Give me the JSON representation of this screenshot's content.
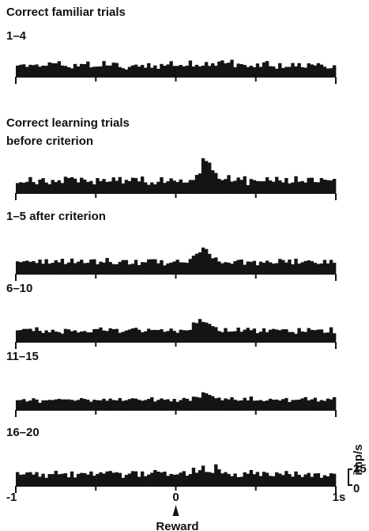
{
  "chart_data": {
    "type": "bar",
    "subtype": "peri-event time histogram (stacked panels, shared x axis)",
    "x_unit": "s",
    "xlim": [
      -1,
      1
    ],
    "x_ticks": [
      -1,
      -0.5,
      0,
      0.5,
      1
    ],
    "x_tick_labels": [
      "-1",
      "",
      "0",
      "",
      "1s"
    ],
    "event_marker": {
      "x": 0,
      "label": "Reward"
    },
    "bin_width": 0.02,
    "scale_bar": {
      "top_label": "25",
      "bottom_label": "0",
      "unit_label": "imp/s",
      "ylim": [
        0,
        25
      ]
    },
    "panels": [
      {
        "title_lines": [
          "Correct familiar trials",
          "1–4"
        ],
        "values": [
          6.4,
          6.9,
          7.2,
          5.6,
          6.9,
          6.7,
          7.1,
          5.7,
          6.4,
          6.3,
          8.4,
          7.9,
          7.8,
          9.1,
          6.4,
          6.2,
          5.4,
          4.7,
          7.4,
          5.9,
          7.4,
          7.3,
          8.9,
          5.3,
          5.7,
          5.8,
          5.9,
          9.2,
          6.5,
          6.4,
          8.2,
          8.0,
          5.5,
          4.8,
          4.0,
          5.6,
          6.5,
          7.0,
          5.8,
          6.8,
          5.1,
          7.9,
          5.1,
          6.5,
          4.4,
          7.4,
          6.3,
          7.1,
          9.1,
          6.2,
          6.2,
          6.8,
          5.9,
          6.4,
          9.5,
          5.8,
          6.9,
          5.9,
          6.4,
          8.6,
          6.2,
          7.8,
          6.3,
          8.9,
          9.6,
          7.8,
          8.2,
          10.0,
          5.4,
          7.6,
          7.3,
          6.8,
          5.5,
          6.3,
          5.4,
          7.7,
          5.6,
          8.4,
          9.2,
          6.0,
          5.9,
          4.5,
          7.9,
          4.9,
          5.6,
          5.6,
          8.0,
          5.9,
          7.9,
          5.4,
          5.1,
          7.8,
          7.1,
          6.5,
          7.9,
          7.0,
          5.7,
          4.6,
          4.8,
          6.6
        ]
      },
      {
        "title_lines": [
          "Correct learning trials",
          "before criterion"
        ],
        "values": [
          5.7,
          6.2,
          5.9,
          6.5,
          9.4,
          6.3,
          5.0,
          7.8,
          8.7,
          6.0,
          5.0,
          7.6,
          6.3,
          7.4,
          5.7,
          9.6,
          8.8,
          9.3,
          8.4,
          6.1,
          9.0,
          7.9,
          6.4,
          7.0,
          4.9,
          8.8,
          6.9,
          8.2,
          6.4,
          6.7,
          9.2,
          7.1,
          9.4,
          5.5,
          7.7,
          6.9,
          9.0,
          8.8,
          6.7,
          9.7,
          6.1,
          4.6,
          6.1,
          4.9,
          6.5,
          9.3,
          5.8,
          6.8,
          8.6,
          7.2,
          6.3,
          7.9,
          6.0,
          6.0,
          7.6,
          7.6,
          10.7,
          11.6,
          21.0,
          19.3,
          18.3,
          13.6,
          11.9,
          8.3,
          7.5,
          8.2,
          10.6,
          6.6,
          7.1,
          9.1,
          7.7,
          9.9,
          4.4,
          8.2,
          7.5,
          6.9,
          6.8,
          6.8,
          9.3,
          7.3,
          6.5,
          9.5,
          7.3,
          6.1,
          8.8,
          5.5,
          6.1,
          9.9,
          6.5,
          6.9,
          6.0,
          8.9,
          9.0,
          6.3,
          6.2,
          8.8,
          7.8,
          7.5,
          7.3,
          8.3
        ]
      },
      {
        "title_lines": [
          "1–5 after criterion"
        ],
        "values": [
          7.2,
          6.7,
          7.2,
          7.6,
          6.9,
          7.3,
          6.2,
          8.3,
          5.7,
          8.5,
          5.8,
          6.3,
          7.9,
          6.6,
          8.8,
          5.5,
          6.5,
          8.9,
          6.1,
          7.0,
          8.2,
          6.1,
          6.3,
          8.3,
          8.5,
          5.4,
          7.0,
          6.4,
          9.3,
          6.8,
          5.5,
          5.4,
          6.9,
          8.0,
          8.0,
          5.3,
          5.7,
          8.1,
          4.9,
          6.7,
          6.6,
          8.4,
          8.5,
          8.5,
          6.0,
          7.9,
          4.7,
          5.9,
          6.4,
          7.1,
          8.2,
          6.6,
          6.5,
          6.3,
          8.7,
          10.7,
          11.9,
          12.8,
          15.7,
          14.8,
          11.8,
          9.1,
          9.6,
          7.1,
          6.0,
          6.7,
          6.4,
          5.7,
          7.3,
          8.1,
          8.3,
          5.1,
          7.1,
          6.9,
          7.5,
          4.8,
          7.0,
          6.3,
          7.6,
          6.6,
          5.8,
          6.1,
          8.7,
          8.0,
          6.5,
          8.3,
          5.4,
          8.8,
          5.8,
          6.6,
          7.4,
          7.8,
          7.3,
          6.3,
          5.6,
          5.9,
          8.1,
          5.9,
          8.1,
          6.3
        ]
      },
      {
        "title_lines": [
          "6–10"
        ],
        "values": [
          6.6,
          6.8,
          7.5,
          7.5,
          7.6,
          6.2,
          8.5,
          6.3,
          5.0,
          6.6,
          5.4,
          7.0,
          5.9,
          5.5,
          4.6,
          7.5,
          7.2,
          6.1,
          6.6,
          5.3,
          5.9,
          6.2,
          5.4,
          5.4,
          7.4,
          7.4,
          8.4,
          6.5,
          6.2,
          7.9,
          7.3,
          7.5,
          5.1,
          5.7,
          6.5,
          7.1,
          7.8,
          8.2,
          7.0,
          5.5,
          6.0,
          7.6,
          6.8,
          6.9,
          6.8,
          7.3,
          5.7,
          6.2,
          7.7,
          6.3,
          5.1,
          7.0,
          6.7,
          6.6,
          6.9,
          11.5,
          11.1,
          13.6,
          11.8,
          11.4,
          10.6,
          9.2,
          8.6,
          6.2,
          5.5,
          8.0,
          5.8,
          5.9,
          6.1,
          8.3,
          5.8,
          7.0,
          8.2,
          6.7,
          7.7,
          4.9,
          5.8,
          7.9,
          5.5,
          7.0,
          7.5,
          7.1,
          6.7,
          7.3,
          7.3,
          5.6,
          5.6,
          4.5,
          8.0,
          5.9,
          5.6,
          8.0,
          6.9,
          6.7,
          7.1,
          7.2,
          5.1,
          5.3,
          8.5,
          4.8
        ]
      },
      {
        "title_lines": [
          "11–15"
        ],
        "values": [
          5.5,
          5.6,
          6.2,
          4.7,
          5.3,
          6.7,
          5.9,
          3.9,
          5.4,
          5.4,
          5.7,
          5.6,
          6.0,
          6.3,
          6.0,
          6.0,
          6.0,
          5.7,
          5.2,
          5.7,
          6.8,
          6.3,
          5.8,
          4.6,
          5.8,
          5.5,
          5.4,
          6.4,
          5.2,
          6.5,
          5.6,
          5.4,
          6.8,
          5.1,
          5.5,
          6.2,
          6.7,
          6.5,
          5.7,
          5.2,
          5.6,
          6.3,
          7.3,
          4.7,
          5.7,
          6.6,
          5.8,
          6.1,
          4.8,
          6.3,
          4.5,
          5.6,
          6.9,
          6.4,
          5.1,
          7.7,
          7.5,
          7.1,
          10.4,
          9.8,
          8.8,
          8.0,
          6.7,
          7.1,
          5.4,
          6.6,
          6.0,
          7.3,
          5.8,
          5.2,
          5.4,
          7.0,
          5.4,
          7.8,
          5.2,
          5.3,
          5.6,
          4.9,
          5.3,
          6.4,
          5.8,
          5.9,
          5.3,
          6.2,
          6.8,
          4.4,
          5.6,
          5.7,
          5.9,
          6.6,
          7.4,
          5.4,
          6.0,
          7.0,
          4.7,
          5.6,
          5.1,
          6.5,
          6.0,
          7.4
        ]
      },
      {
        "title_lines": [
          "16–20"
        ],
        "values": [
          8.0,
          6.4,
          6.6,
          7.8,
          8.0,
          6.5,
          8.0,
          5.2,
          7.0,
          4.5,
          6.8,
          6.8,
          8.8,
          6.7,
          7.0,
          7.3,
          4.8,
          8.4,
          4.7,
          6.9,
          7.5,
          7.4,
          6.5,
          8.4,
          5.8,
          6.9,
          7.9,
          7.1,
          8.4,
          8.7,
          7.6,
          7.9,
          7.5,
          4.5,
          6.3,
          7.1,
          8.6,
          8.5,
          5.1,
          8.4,
          5.5,
          6.5,
          7.6,
          9.3,
          8.3,
          7.8,
          8.3,
          5.7,
          6.9,
          6.4,
          6.6,
          7.7,
          8.6,
          5.8,
          6.8,
          10.7,
          7.6,
          9.2,
          12.0,
          8.1,
          8.0,
          7.5,
          12.8,
          9.7,
          7.2,
          8.0,
          6.9,
          5.5,
          7.1,
          4.9,
          5.1,
          7.9,
          7.0,
          9.3,
          6.7,
          8.1,
          5.6,
          8.2,
          7.6,
          5.7,
          5.5,
          7.9,
          7.1,
          6.2,
          8.7,
          6.8,
          5.2,
          8.4,
          6.4,
          5.0,
          6.6,
          7.5,
          5.1,
          7.2,
          7.3,
          4.5,
          6.1,
          5.4,
          7.3,
          7.0
        ]
      }
    ]
  }
}
